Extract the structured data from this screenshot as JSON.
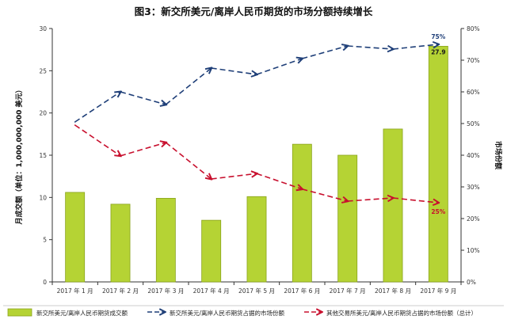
{
  "chart_data": {
    "type": "bar",
    "title": "图3：新交所美元/离岸人民币期货的市场分额持续增长",
    "categories": [
      "2017 年 1 月",
      "2017 年 2 月",
      "2017 年 3 月",
      "2017 年 4 月",
      "2017 年 5 月",
      "2017 年 6 月",
      "2017 年 7 月",
      "2017 年 8 月",
      "2017 年 9 月"
    ],
    "ylabel": "月成交额（单位：1,000,000,000 美元）",
    "y2label": "市场份额",
    "ylim": [
      0,
      30
    ],
    "yticks": [
      0,
      5,
      10,
      15,
      20,
      25,
      30
    ],
    "y2lim": [
      0,
      80
    ],
    "y2ticks": [
      "0%",
      "10%",
      "20%",
      "30%",
      "40%",
      "50%",
      "60%",
      "70%",
      "80%"
    ],
    "grid": false,
    "legend_position": "bottom",
    "series": [
      {
        "name": "新交所美元/离岸人民币期货成交额",
        "kind": "bar",
        "axis": "left",
        "color": "#b5d334",
        "values": [
          10.6,
          9.2,
          9.9,
          7.3,
          10.1,
          16.3,
          15.0,
          18.1,
          27.9
        ]
      },
      {
        "name": "新交所美元/离岸人民币期货占据的市场份额",
        "kind": "line",
        "axis": "right",
        "color": "#1f3f78",
        "values": [
          50.5,
          60.0,
          56.0,
          67.5,
          65.5,
          70.5,
          74.5,
          73.5,
          75.0
        ]
      },
      {
        "name": "其他交易所美元/离岸人民币期货占据的市场份额（总计）",
        "kind": "line",
        "axis": "right",
        "color": "#c8102e",
        "values": [
          49.5,
          39.8,
          44.0,
          32.5,
          34.2,
          29.3,
          25.5,
          26.5,
          25.0
        ]
      }
    ],
    "annotations": [
      {
        "text": "27.9",
        "series": 0,
        "index": 8
      },
      {
        "text": "75%",
        "series": 1,
        "index": 8
      },
      {
        "text": "25%",
        "series": 2,
        "index": 8
      }
    ]
  }
}
